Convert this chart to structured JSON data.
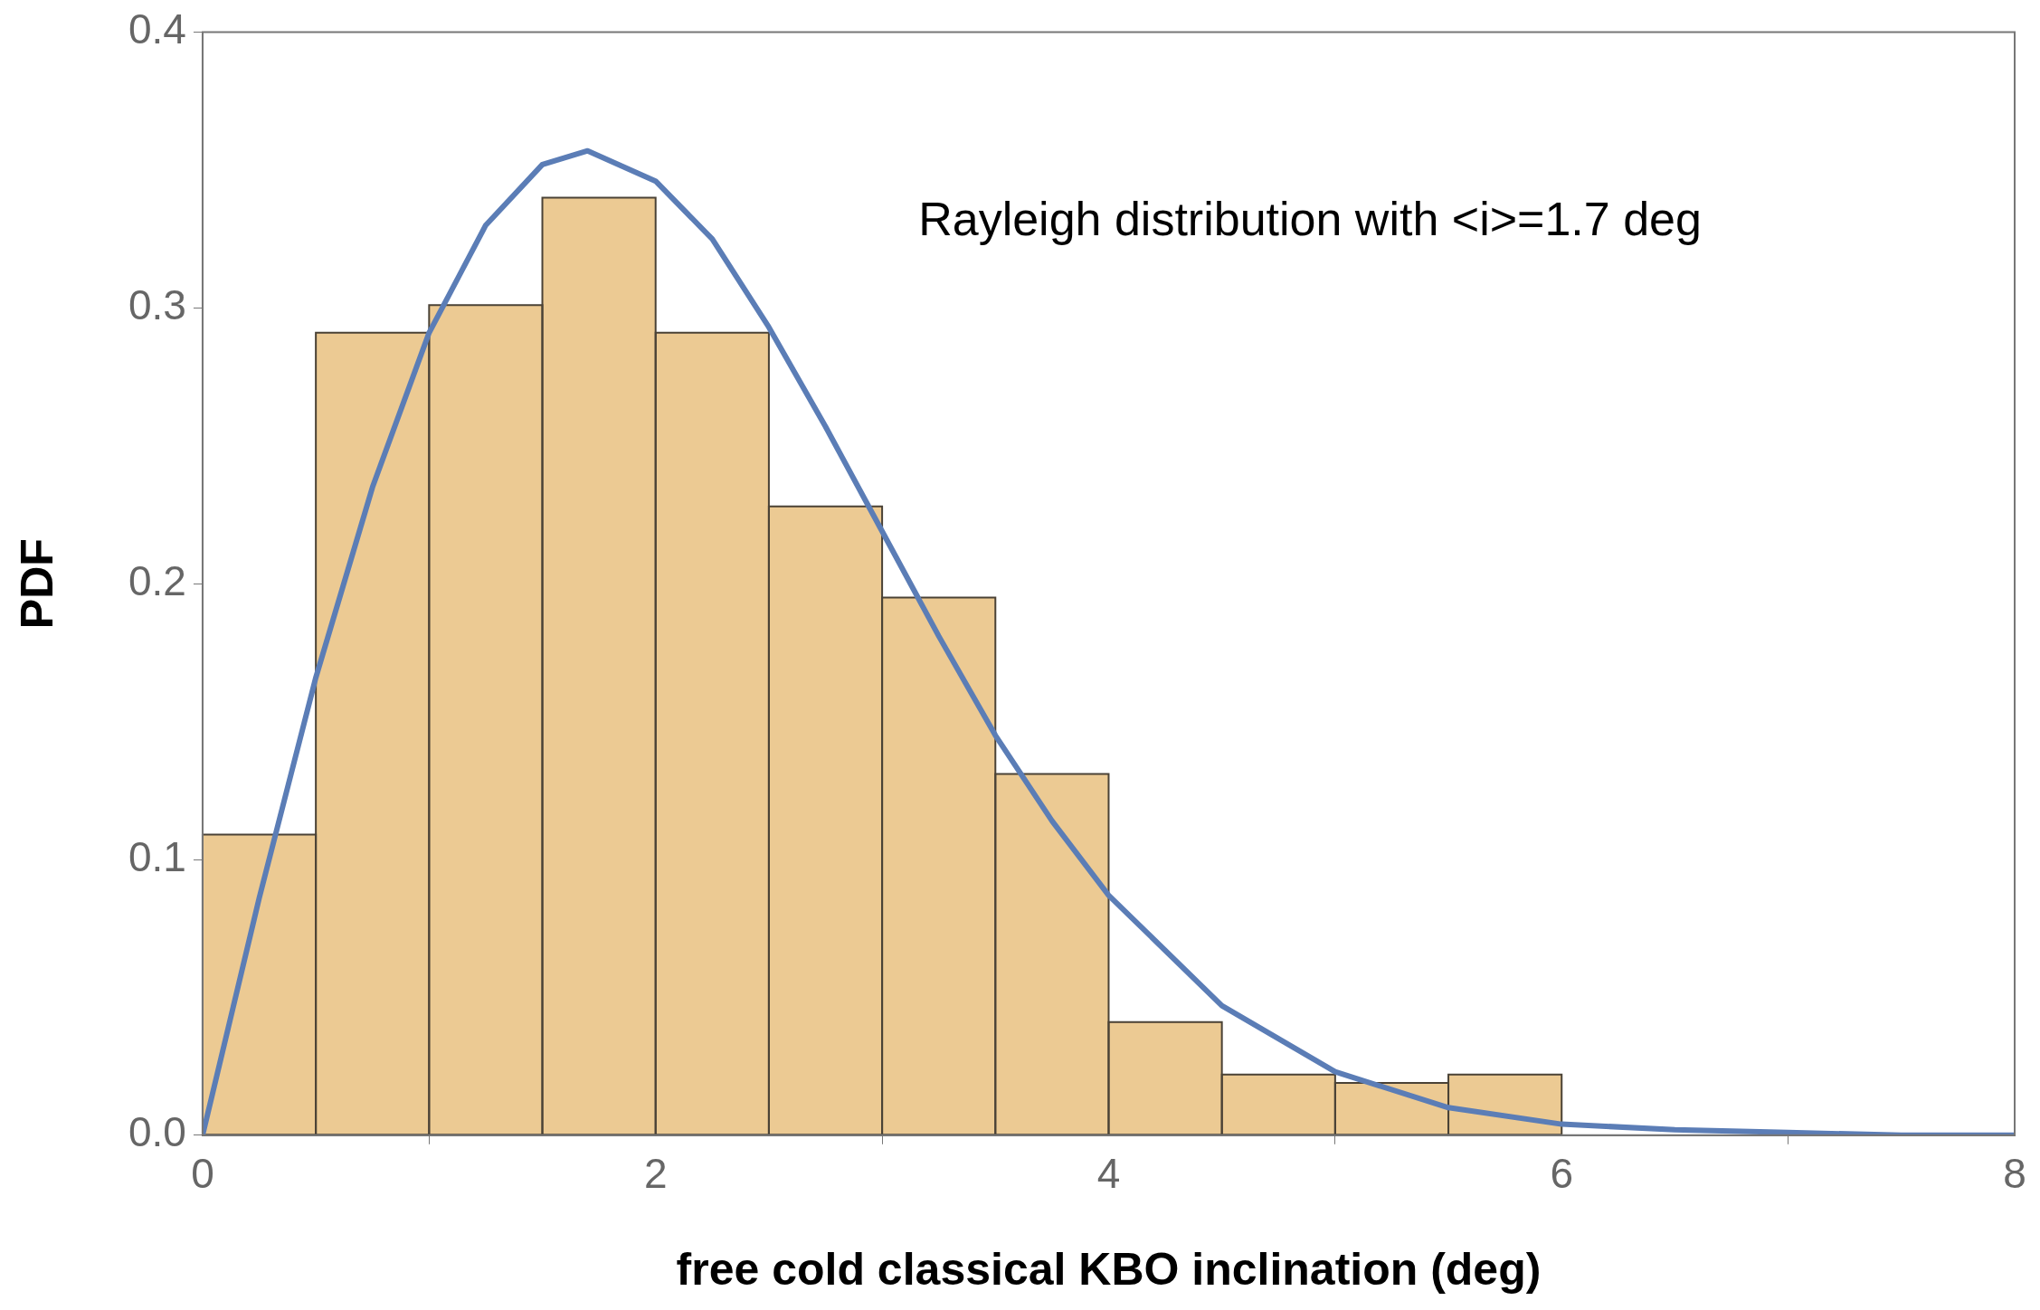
{
  "chart_data": {
    "type": "histogram",
    "xlabel": "free cold classical KBO inclination (deg)",
    "ylabel": "PDF",
    "annotations": [
      "Rayleigh distribution with <i>=1.7 deg"
    ],
    "color": "#ecca93",
    "bins": [
      0,
      0.5,
      1,
      1.5,
      2,
      2.5,
      3,
      3.5,
      4,
      4.5,
      5,
      5.5,
      6
    ],
    "values": [
      0.109,
      0.291,
      0.301,
      0.34,
      0.291,
      0.228,
      0.195,
      0.131,
      0.041,
      0.022,
      0.019,
      0.022
    ],
    "series": [
      {
        "type": "line",
        "color": "#5b7db6",
        "x": [
          0,
          0.25,
          0.5,
          0.75,
          1,
          1.25,
          1.5,
          1.7,
          2,
          2.25,
          2.5,
          2.75,
          3,
          3.25,
          3.5,
          3.75,
          4,
          4.5,
          5,
          5.5,
          6,
          6.5,
          7,
          7.5,
          8
        ],
        "values": [
          0,
          0.086,
          0.166,
          0.235,
          0.291,
          0.33,
          0.352,
          0.357,
          0.346,
          0.325,
          0.293,
          0.257,
          0.219,
          0.181,
          0.145,
          0.114,
          0.087,
          0.047,
          0.023,
          0.01,
          0.004,
          0.002,
          0.001,
          0,
          0
        ]
      }
    ],
    "xlim": [
      0,
      8
    ],
    "xticks": [
      0,
      2,
      4,
      6,
      8
    ],
    "ylim": [
      0,
      0.4
    ],
    "yticks": [
      {
        "value": 0,
        "label": "0.0"
      },
      0.1,
      0.2,
      0.3,
      0.4
    ],
    "grid": false,
    "legend": false,
    "marker": "none",
    "line_style": "solid"
  }
}
